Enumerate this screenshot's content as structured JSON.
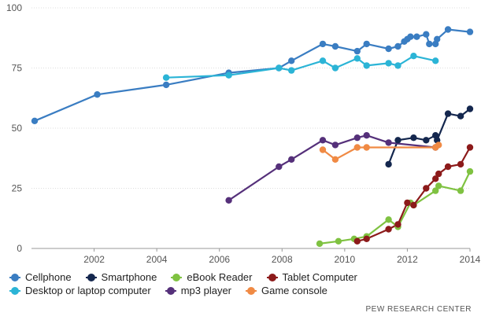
{
  "chart_data": {
    "type": "line",
    "title": "",
    "xlabel": "",
    "ylabel": "",
    "xlim": [
      2000,
      2014
    ],
    "ylim": [
      0,
      100
    ],
    "x_ticks": [
      2002,
      2004,
      2006,
      2008,
      2010,
      2012,
      2014
    ],
    "y_ticks": [
      0,
      25,
      50,
      75,
      100
    ],
    "grid": "horizontal",
    "legend_position": "bottom",
    "series": [
      {
        "name": "Cellphone",
        "color": "#3a7dc2",
        "points": [
          [
            2000.1,
            53
          ],
          [
            2002.1,
            64
          ],
          [
            2004.3,
            68
          ],
          [
            2006.3,
            73
          ],
          [
            2007.9,
            75
          ],
          [
            2008.3,
            78
          ],
          [
            2009.3,
            85
          ],
          [
            2009.7,
            84
          ],
          [
            2010.4,
            82
          ],
          [
            2010.7,
            85
          ],
          [
            2011.4,
            83
          ],
          [
            2011.7,
            84
          ],
          [
            2011.9,
            86
          ],
          [
            2012.0,
            87
          ],
          [
            2012.1,
            88
          ],
          [
            2012.3,
            88
          ],
          [
            2012.6,
            89
          ],
          [
            2012.7,
            85
          ],
          [
            2012.9,
            85
          ],
          [
            2012.95,
            87
          ],
          [
            2013.3,
            91
          ],
          [
            2014.0,
            90
          ]
        ]
      },
      {
        "name": "Smartphone",
        "color": "#14274e",
        "points": [
          [
            2011.4,
            35
          ],
          [
            2011.7,
            45
          ],
          [
            2012.2,
            46
          ],
          [
            2012.6,
            45
          ],
          [
            2012.9,
            47
          ],
          [
            2012.95,
            45
          ],
          [
            2013.3,
            56
          ],
          [
            2013.7,
            55
          ],
          [
            2014.0,
            58
          ]
        ]
      },
      {
        "name": "eBook Reader",
        "color": "#7fc241",
        "points": [
          [
            2009.2,
            2
          ],
          [
            2009.8,
            3
          ],
          [
            2010.3,
            4
          ],
          [
            2010.7,
            5
          ],
          [
            2011.4,
            12
          ],
          [
            2011.7,
            9
          ],
          [
            2012.1,
            19
          ],
          [
            2012.2,
            18
          ],
          [
            2012.9,
            24
          ],
          [
            2013.0,
            26
          ],
          [
            2013.7,
            24
          ],
          [
            2014.0,
            32
          ]
        ]
      },
      {
        "name": "Tablet Computer",
        "color": "#8c1a1a",
        "points": [
          [
            2010.4,
            3
          ],
          [
            2010.7,
            4
          ],
          [
            2011.4,
            8
          ],
          [
            2011.7,
            10
          ],
          [
            2012.0,
            19
          ],
          [
            2012.2,
            18
          ],
          [
            2012.6,
            25
          ],
          [
            2012.9,
            29
          ],
          [
            2013.0,
            31
          ],
          [
            2013.3,
            34
          ],
          [
            2013.7,
            35
          ],
          [
            2014.0,
            42
          ]
        ]
      },
      {
        "name": "Desktop or laptop computer",
        "color": "#2bb4d6",
        "points": [
          [
            2004.3,
            71
          ],
          [
            2006.3,
            72
          ],
          [
            2007.9,
            75
          ],
          [
            2008.3,
            74
          ],
          [
            2009.3,
            78
          ],
          [
            2009.7,
            75
          ],
          [
            2010.4,
            79
          ],
          [
            2010.7,
            76
          ],
          [
            2011.4,
            77
          ],
          [
            2011.7,
            76
          ],
          [
            2012.2,
            80
          ],
          [
            2012.9,
            78
          ]
        ]
      },
      {
        "name": "mp3 player",
        "color": "#55307a",
        "points": [
          [
            2006.3,
            20
          ],
          [
            2007.9,
            34
          ],
          [
            2008.3,
            37
          ],
          [
            2009.3,
            45
          ],
          [
            2009.7,
            43
          ],
          [
            2010.4,
            46
          ],
          [
            2010.7,
            47
          ],
          [
            2011.4,
            44
          ],
          [
            2012.9,
            42
          ]
        ]
      },
      {
        "name": "Game console",
        "color": "#f08a44",
        "points": [
          [
            2009.3,
            41
          ],
          [
            2009.7,
            37
          ],
          [
            2010.4,
            42
          ],
          [
            2010.7,
            42
          ],
          [
            2012.9,
            42
          ],
          [
            2013.0,
            43
          ]
        ]
      }
    ]
  },
  "legend_rows": [
    [
      "Cellphone",
      "Smartphone",
      "eBook Reader",
      "Tablet Computer"
    ],
    [
      "Desktop or laptop computer",
      "mp3 player",
      "Game console"
    ]
  ],
  "source": "PEW RESEARCH CENTER"
}
